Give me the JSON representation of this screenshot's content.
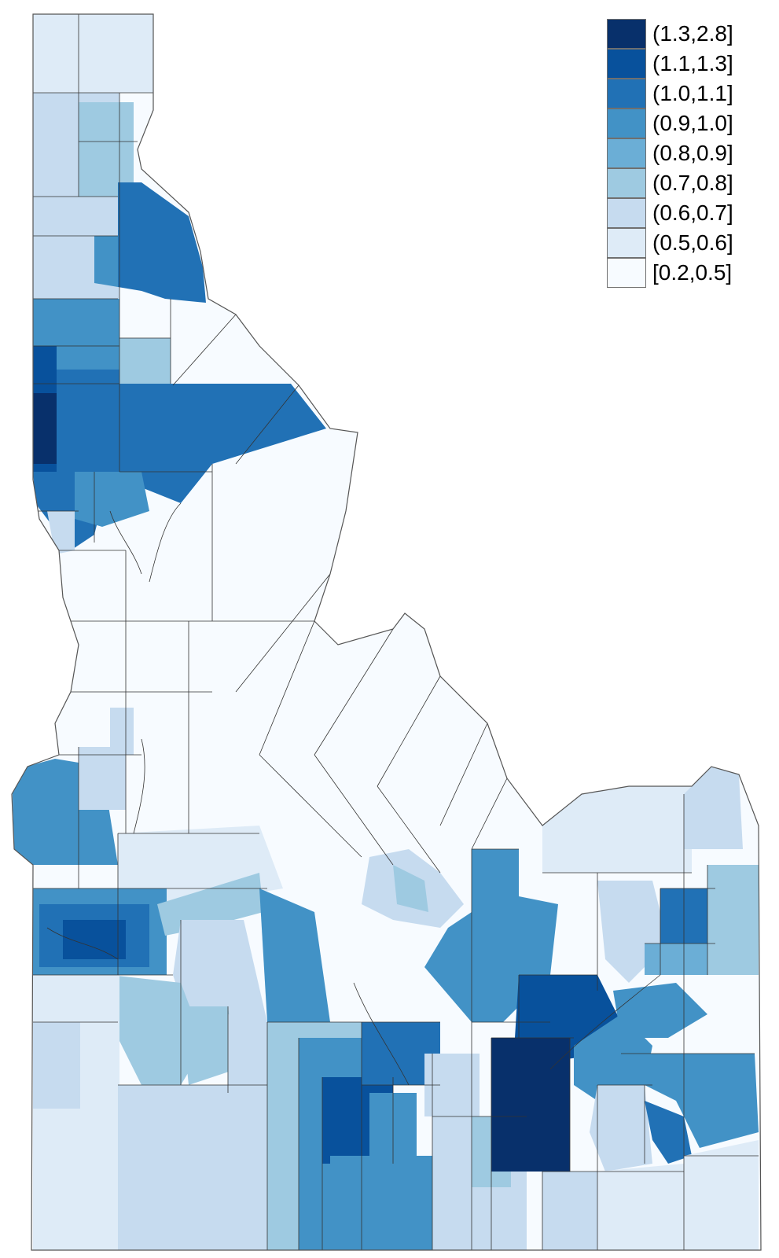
{
  "map": {
    "region": "Idaho",
    "unit_type": "census tracts",
    "border_color": "#333333",
    "legend": [
      {
        "label": "(1.3,2.8]",
        "color": "#08306b"
      },
      {
        "label": "(1.1,1.3]",
        "color": "#08519c"
      },
      {
        "label": "(1.0,1.1]",
        "color": "#2171b5"
      },
      {
        "label": "(0.9,1.0]",
        "color": "#4292c6"
      },
      {
        "label": "(0.8,0.9]",
        "color": "#6baed6"
      },
      {
        "label": "(0.7,0.8]",
        "color": "#9ecae1"
      },
      {
        "label": "(0.6,0.7]",
        "color": "#c6dbef"
      },
      {
        "label": "(0.5,0.6]",
        "color": "#deebf7"
      },
      {
        "label": "[0.2,0.5]",
        "color": "#f7fbff"
      }
    ]
  }
}
